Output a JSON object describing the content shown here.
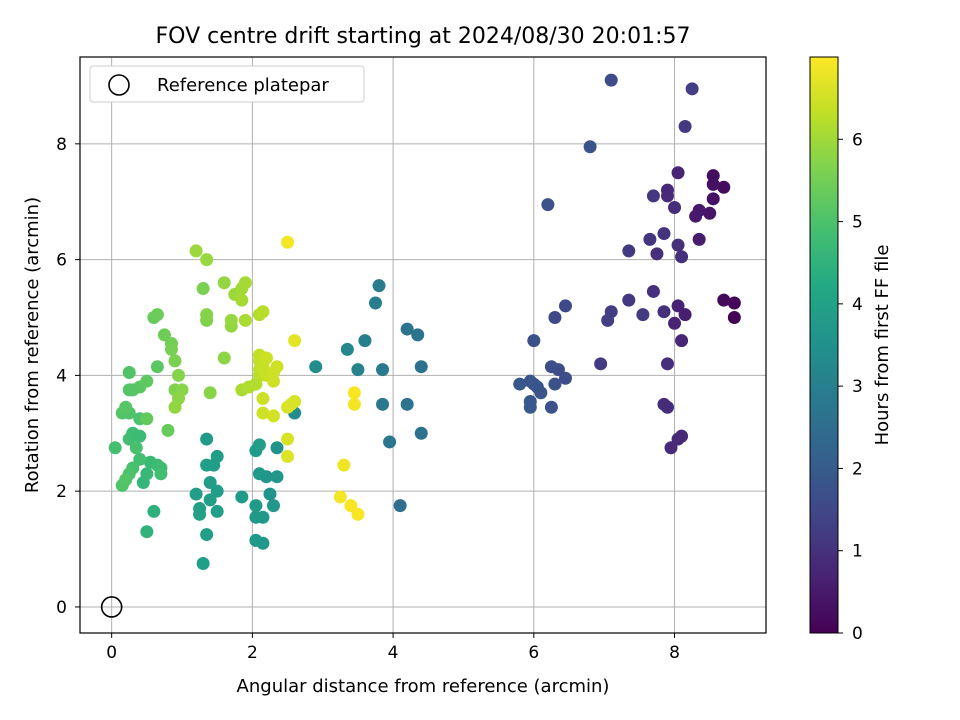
{
  "chart_data": {
    "type": "scatter",
    "title": "FOV centre drift starting at 2024/08/30 20:01:57",
    "xlabel": "Angular distance from reference (arcmin)",
    "ylabel": "Rotation from reference (arcmin)",
    "xlim": [
      -0.45,
      9.3
    ],
    "ylim": [
      -0.45,
      9.5
    ],
    "xticks": [
      0,
      2,
      4,
      6,
      8
    ],
    "yticks": [
      0,
      2,
      4,
      6,
      8
    ],
    "grid": true,
    "legend": {
      "placement": "upper-left",
      "entries": [
        "Reference platepar"
      ]
    },
    "reference_point": {
      "x": 0,
      "y": 0,
      "marker": "open-circle",
      "color": "#000000"
    },
    "colorbar": {
      "label": "Hours from first FF file",
      "min": 0,
      "max": 7,
      "ticks": [
        0,
        1,
        2,
        3,
        4,
        5,
        6
      ],
      "colormap": "viridis"
    },
    "points": [
      {
        "x": 8.85,
        "y": 5.0,
        "c": 0.05
      },
      {
        "x": 8.85,
        "y": 5.25,
        "c": 0.1
      },
      {
        "x": 8.7,
        "y": 5.3,
        "c": 0.15
      },
      {
        "x": 8.7,
        "y": 7.25,
        "c": 0.2
      },
      {
        "x": 8.55,
        "y": 7.45,
        "c": 0.25
      },
      {
        "x": 8.55,
        "y": 7.3,
        "c": 0.3
      },
      {
        "x": 8.55,
        "y": 7.05,
        "c": 0.35
      },
      {
        "x": 8.5,
        "y": 6.8,
        "c": 0.4
      },
      {
        "x": 8.35,
        "y": 6.85,
        "c": 0.45
      },
      {
        "x": 8.3,
        "y": 6.75,
        "c": 0.5
      },
      {
        "x": 8.35,
        "y": 6.35,
        "c": 0.55
      },
      {
        "x": 8.15,
        "y": 5.05,
        "c": 0.6
      },
      {
        "x": 8.05,
        "y": 5.2,
        "c": 0.65
      },
      {
        "x": 8.0,
        "y": 4.9,
        "c": 0.7
      },
      {
        "x": 8.1,
        "y": 4.6,
        "c": 0.75
      },
      {
        "x": 8.05,
        "y": 2.9,
        "c": 0.8
      },
      {
        "x": 8.1,
        "y": 2.95,
        "c": 0.82
      },
      {
        "x": 7.95,
        "y": 2.75,
        "c": 0.85
      },
      {
        "x": 7.9,
        "y": 3.45,
        "c": 0.88
      },
      {
        "x": 7.85,
        "y": 3.5,
        "c": 0.9
      },
      {
        "x": 7.9,
        "y": 4.2,
        "c": 0.92
      },
      {
        "x": 7.85,
        "y": 5.1,
        "c": 0.95
      },
      {
        "x": 7.7,
        "y": 5.45,
        "c": 0.98
      },
      {
        "x": 8.1,
        "y": 6.05,
        "c": 1.0
      },
      {
        "x": 8.05,
        "y": 6.25,
        "c": 0.96
      },
      {
        "x": 7.75,
        "y": 6.1,
        "c": 0.94
      },
      {
        "x": 7.85,
        "y": 6.45,
        "c": 1.02
      },
      {
        "x": 7.65,
        "y": 6.35,
        "c": 1.05
      },
      {
        "x": 8.0,
        "y": 6.9,
        "c": 0.9
      },
      {
        "x": 7.9,
        "y": 7.1,
        "c": 0.85
      },
      {
        "x": 7.9,
        "y": 7.2,
        "c": 0.8
      },
      {
        "x": 7.7,
        "y": 7.1,
        "c": 1.1
      },
      {
        "x": 8.05,
        "y": 7.5,
        "c": 0.7
      },
      {
        "x": 8.15,
        "y": 8.3,
        "c": 1.15
      },
      {
        "x": 8.25,
        "y": 8.95,
        "c": 1.3
      },
      {
        "x": 7.55,
        "y": 5.05,
        "c": 1.2
      },
      {
        "x": 7.35,
        "y": 5.3,
        "c": 1.15
      },
      {
        "x": 7.35,
        "y": 6.15,
        "c": 1.2
      },
      {
        "x": 7.1,
        "y": 5.1,
        "c": 1.25
      },
      {
        "x": 7.05,
        "y": 4.95,
        "c": 1.3
      },
      {
        "x": 6.95,
        "y": 4.2,
        "c": 1.2
      },
      {
        "x": 7.1,
        "y": 9.1,
        "c": 1.6
      },
      {
        "x": 6.8,
        "y": 7.95,
        "c": 1.8
      },
      {
        "x": 6.2,
        "y": 6.95,
        "c": 1.75
      },
      {
        "x": 6.45,
        "y": 5.2,
        "c": 1.5
      },
      {
        "x": 6.3,
        "y": 5.0,
        "c": 1.55
      },
      {
        "x": 6.0,
        "y": 4.6,
        "c": 1.7
      },
      {
        "x": 6.25,
        "y": 4.15,
        "c": 1.65
      },
      {
        "x": 6.35,
        "y": 4.1,
        "c": 1.6
      },
      {
        "x": 6.45,
        "y": 3.95,
        "c": 1.6
      },
      {
        "x": 6.3,
        "y": 3.85,
        "c": 1.7
      },
      {
        "x": 6.25,
        "y": 3.45,
        "c": 1.75
      },
      {
        "x": 6.1,
        "y": 3.7,
        "c": 1.75
      },
      {
        "x": 6.05,
        "y": 3.8,
        "c": 1.8
      },
      {
        "x": 6.0,
        "y": 3.85,
        "c": 1.85
      },
      {
        "x": 5.95,
        "y": 3.9,
        "c": 1.85
      },
      {
        "x": 5.8,
        "y": 3.85,
        "c": 1.9
      },
      {
        "x": 5.95,
        "y": 3.55,
        "c": 1.9
      },
      {
        "x": 5.95,
        "y": 3.45,
        "c": 1.95
      },
      {
        "x": 4.4,
        "y": 4.15,
        "c": 2.6
      },
      {
        "x": 4.35,
        "y": 4.7,
        "c": 2.65
      },
      {
        "x": 4.2,
        "y": 4.8,
        "c": 2.7
      },
      {
        "x": 4.4,
        "y": 3.0,
        "c": 2.6
      },
      {
        "x": 4.2,
        "y": 3.5,
        "c": 2.65
      },
      {
        "x": 4.1,
        "y": 1.75,
        "c": 2.55
      },
      {
        "x": 3.95,
        "y": 2.85,
        "c": 2.75
      },
      {
        "x": 3.85,
        "y": 3.5,
        "c": 2.8
      },
      {
        "x": 3.85,
        "y": 4.1,
        "c": 2.85
      },
      {
        "x": 3.8,
        "y": 5.55,
        "c": 2.9
      },
      {
        "x": 3.75,
        "y": 5.25,
        "c": 2.95
      },
      {
        "x": 3.6,
        "y": 4.6,
        "c": 3.0
      },
      {
        "x": 3.5,
        "y": 4.1,
        "c": 3.1
      },
      {
        "x": 3.35,
        "y": 4.45,
        "c": 3.2
      },
      {
        "x": 2.9,
        "y": 4.15,
        "c": 3.35
      },
      {
        "x": 2.6,
        "y": 3.35,
        "c": 3.4
      },
      {
        "x": 2.35,
        "y": 2.75,
        "c": 3.55
      },
      {
        "x": 2.2,
        "y": 2.25,
        "c": 3.6
      },
      {
        "x": 2.35,
        "y": 2.25,
        "c": 3.65
      },
      {
        "x": 2.25,
        "y": 1.95,
        "c": 3.6
      },
      {
        "x": 2.3,
        "y": 1.75,
        "c": 3.65
      },
      {
        "x": 2.15,
        "y": 1.55,
        "c": 3.7
      },
      {
        "x": 2.05,
        "y": 1.55,
        "c": 3.75
      },
      {
        "x": 2.15,
        "y": 1.1,
        "c": 3.7
      },
      {
        "x": 2.05,
        "y": 1.15,
        "c": 3.75
      },
      {
        "x": 2.05,
        "y": 1.75,
        "c": 3.8
      },
      {
        "x": 2.1,
        "y": 2.3,
        "c": 3.75
      },
      {
        "x": 2.05,
        "y": 2.7,
        "c": 3.8
      },
      {
        "x": 2.1,
        "y": 2.8,
        "c": 3.85
      },
      {
        "x": 1.85,
        "y": 1.9,
        "c": 3.8
      },
      {
        "x": 1.5,
        "y": 2.6,
        "c": 3.85
      },
      {
        "x": 1.45,
        "y": 2.45,
        "c": 3.9
      },
      {
        "x": 1.35,
        "y": 2.45,
        "c": 3.95
      },
      {
        "x": 1.4,
        "y": 2.15,
        "c": 3.9
      },
      {
        "x": 1.5,
        "y": 2.0,
        "c": 3.85
      },
      {
        "x": 1.4,
        "y": 1.85,
        "c": 3.9
      },
      {
        "x": 1.5,
        "y": 1.65,
        "c": 3.95
      },
      {
        "x": 1.25,
        "y": 1.7,
        "c": 3.9
      },
      {
        "x": 1.25,
        "y": 1.6,
        "c": 3.95
      },
      {
        "x": 1.2,
        "y": 1.95,
        "c": 3.85
      },
      {
        "x": 1.35,
        "y": 1.25,
        "c": 3.9
      },
      {
        "x": 1.3,
        "y": 0.75,
        "c": 3.95
      },
      {
        "x": 1.35,
        "y": 2.9,
        "c": 3.8
      },
      {
        "x": 0.5,
        "y": 1.3,
        "c": 4.5
      },
      {
        "x": 0.6,
        "y": 1.65,
        "c": 4.45
      },
      {
        "x": 0.45,
        "y": 2.15,
        "c": 4.6
      },
      {
        "x": 0.5,
        "y": 2.3,
        "c": 4.65
      },
      {
        "x": 0.55,
        "y": 2.5,
        "c": 4.7
      },
      {
        "x": 0.65,
        "y": 2.45,
        "c": 4.75
      },
      {
        "x": 0.7,
        "y": 2.4,
        "c": 4.8
      },
      {
        "x": 0.7,
        "y": 2.3,
        "c": 4.85
      },
      {
        "x": 0.4,
        "y": 2.55,
        "c": 4.9
      },
      {
        "x": 0.3,
        "y": 2.4,
        "c": 4.95
      },
      {
        "x": 0.25,
        "y": 2.3,
        "c": 5.0
      },
      {
        "x": 0.15,
        "y": 2.1,
        "c": 5.05
      },
      {
        "x": 0.2,
        "y": 2.2,
        "c": 5.1
      },
      {
        "x": 0.05,
        "y": 2.75,
        "c": 4.9
      },
      {
        "x": 0.25,
        "y": 2.9,
        "c": 4.85
      },
      {
        "x": 0.3,
        "y": 3.0,
        "c": 4.8
      },
      {
        "x": 0.4,
        "y": 2.95,
        "c": 4.75
      },
      {
        "x": 0.35,
        "y": 2.75,
        "c": 4.95
      },
      {
        "x": 0.4,
        "y": 3.25,
        "c": 5.0
      },
      {
        "x": 0.25,
        "y": 3.35,
        "c": 5.05
      },
      {
        "x": 0.15,
        "y": 3.35,
        "c": 5.1
      },
      {
        "x": 0.2,
        "y": 3.45,
        "c": 5.15
      },
      {
        "x": 0.4,
        "y": 3.8,
        "c": 5.2
      },
      {
        "x": 0.5,
        "y": 3.9,
        "c": 5.25
      },
      {
        "x": 0.25,
        "y": 3.75,
        "c": 5.1
      },
      {
        "x": 0.3,
        "y": 3.75,
        "c": 5.15
      },
      {
        "x": 0.25,
        "y": 4.05,
        "c": 5.05
      },
      {
        "x": 0.65,
        "y": 4.15,
        "c": 5.2
      },
      {
        "x": 0.5,
        "y": 3.25,
        "c": 5.3
      },
      {
        "x": 0.8,
        "y": 3.05,
        "c": 5.35
      },
      {
        "x": 0.6,
        "y": 5.0,
        "c": 5.35
      },
      {
        "x": 0.65,
        "y": 5.05,
        "c": 5.4
      },
      {
        "x": 0.75,
        "y": 4.7,
        "c": 5.45
      },
      {
        "x": 0.85,
        "y": 4.55,
        "c": 5.5
      },
      {
        "x": 0.85,
        "y": 4.45,
        "c": 5.55
      },
      {
        "x": 0.9,
        "y": 4.25,
        "c": 5.6
      },
      {
        "x": 0.9,
        "y": 3.75,
        "c": 5.65
      },
      {
        "x": 0.95,
        "y": 4.0,
        "c": 5.7
      },
      {
        "x": 1.0,
        "y": 3.75,
        "c": 5.75
      },
      {
        "x": 0.95,
        "y": 3.6,
        "c": 5.8
      },
      {
        "x": 0.9,
        "y": 3.45,
        "c": 5.85
      },
      {
        "x": 1.3,
        "y": 5.5,
        "c": 5.6
      },
      {
        "x": 1.35,
        "y": 4.95,
        "c": 5.65
      },
      {
        "x": 1.35,
        "y": 5.05,
        "c": 5.7
      },
      {
        "x": 1.4,
        "y": 3.7,
        "c": 5.75
      },
      {
        "x": 1.2,
        "y": 6.15,
        "c": 5.95
      },
      {
        "x": 1.35,
        "y": 6.0,
        "c": 5.9
      },
      {
        "x": 1.6,
        "y": 5.6,
        "c": 5.85
      },
      {
        "x": 1.6,
        "y": 4.3,
        "c": 5.8
      },
      {
        "x": 1.7,
        "y": 4.85,
        "c": 5.85
      },
      {
        "x": 1.7,
        "y": 4.95,
        "c": 5.9
      },
      {
        "x": 1.75,
        "y": 5.4,
        "c": 5.95
      },
      {
        "x": 1.85,
        "y": 5.5,
        "c": 6.0
      },
      {
        "x": 1.85,
        "y": 5.3,
        "c": 6.05
      },
      {
        "x": 1.9,
        "y": 5.6,
        "c": 6.05
      },
      {
        "x": 1.9,
        "y": 4.95,
        "c": 6.1
      },
      {
        "x": 1.85,
        "y": 3.75,
        "c": 6.1
      },
      {
        "x": 1.95,
        "y": 3.8,
        "c": 6.15
      },
      {
        "x": 2.05,
        "y": 3.85,
        "c": 6.2
      },
      {
        "x": 2.1,
        "y": 4.0,
        "c": 6.25
      },
      {
        "x": 2.1,
        "y": 4.1,
        "c": 6.3
      },
      {
        "x": 2.1,
        "y": 4.25,
        "c": 6.35
      },
      {
        "x": 2.1,
        "y": 4.35,
        "c": 6.35
      },
      {
        "x": 2.15,
        "y": 4.15,
        "c": 6.4
      },
      {
        "x": 2.2,
        "y": 4.0,
        "c": 6.4
      },
      {
        "x": 2.2,
        "y": 4.3,
        "c": 6.45
      },
      {
        "x": 2.3,
        "y": 4.05,
        "c": 6.45
      },
      {
        "x": 2.35,
        "y": 4.15,
        "c": 6.5
      },
      {
        "x": 2.3,
        "y": 3.9,
        "c": 6.5
      },
      {
        "x": 2.15,
        "y": 3.6,
        "c": 6.45
      },
      {
        "x": 2.15,
        "y": 3.35,
        "c": 6.5
      },
      {
        "x": 2.3,
        "y": 3.3,
        "c": 6.55
      },
      {
        "x": 2.5,
        "y": 3.45,
        "c": 6.6
      },
      {
        "x": 2.55,
        "y": 3.5,
        "c": 6.65
      },
      {
        "x": 2.6,
        "y": 3.55,
        "c": 6.6
      },
      {
        "x": 2.5,
        "y": 2.9,
        "c": 6.6
      },
      {
        "x": 2.5,
        "y": 2.6,
        "c": 6.65
      },
      {
        "x": 2.1,
        "y": 5.05,
        "c": 6.2
      },
      {
        "x": 2.15,
        "y": 5.1,
        "c": 6.25
      },
      {
        "x": 2.6,
        "y": 4.6,
        "c": 6.7
      },
      {
        "x": 2.5,
        "y": 6.3,
        "c": 6.9
      },
      {
        "x": 3.3,
        "y": 2.45,
        "c": 6.85
      },
      {
        "x": 3.25,
        "y": 1.9,
        "c": 6.9
      },
      {
        "x": 3.4,
        "y": 1.75,
        "c": 6.95
      },
      {
        "x": 3.5,
        "y": 1.6,
        "c": 6.95
      },
      {
        "x": 3.45,
        "y": 3.5,
        "c": 6.9
      },
      {
        "x": 3.45,
        "y": 3.7,
        "c": 6.95
      }
    ]
  }
}
